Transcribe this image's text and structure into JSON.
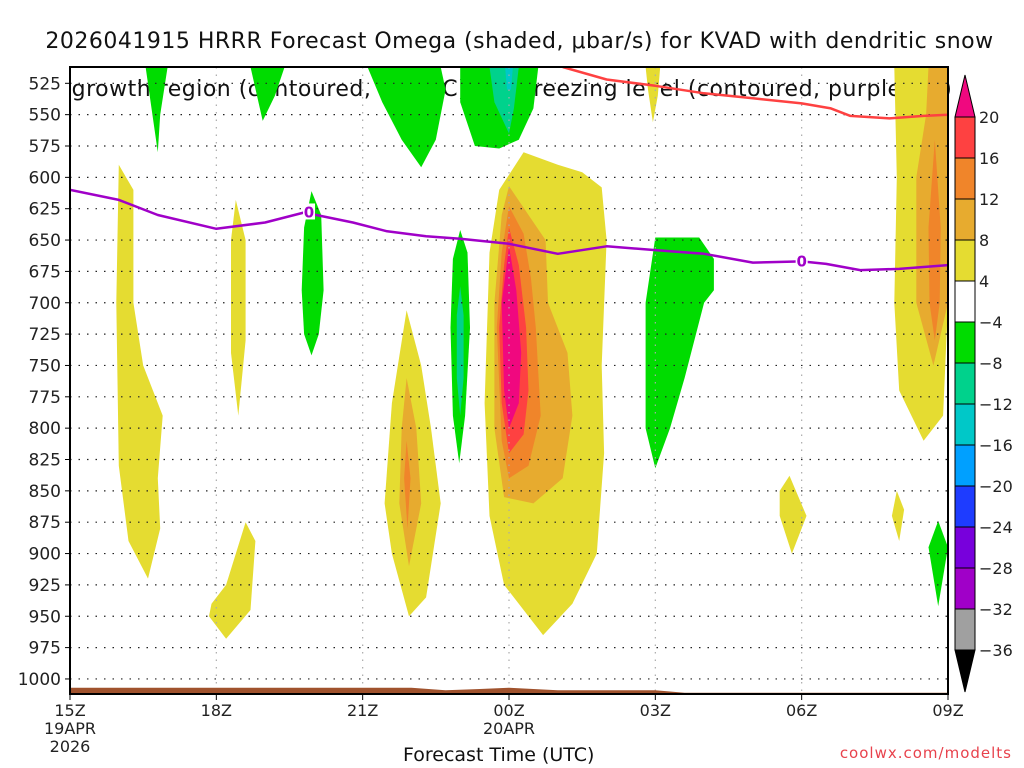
{
  "title": {
    "line1": "2026041915 HRRR Forecast Omega (shaded, μbar/s) for KVAD with dendritic snow",
    "line2": "growth region (contoured, red, ºC) and freezing level (contoured, purple, ºC)"
  },
  "credit": "coolwx.com/modelts",
  "chart_data": {
    "type": "heatmap",
    "title": "2026041915 HRRR Forecast Omega (shaded, μbar/s) for KVAD with dendritic snow growth region (contoured, red, ºC) and freezing level (contoured, purple, ºC)",
    "xlabel": "Forecast Time (UTC)",
    "ylabel": "",
    "x_ticks": [
      {
        "hour": 0,
        "label": "15Z",
        "sub": [
          "19APR",
          "2026"
        ]
      },
      {
        "hour": 3,
        "label": "18Z",
        "sub": []
      },
      {
        "hour": 6,
        "label": "21Z",
        "sub": []
      },
      {
        "hour": 9,
        "label": "00Z",
        "sub": [
          "20APR"
        ]
      },
      {
        "hour": 12,
        "label": "03Z",
        "sub": []
      },
      {
        "hour": 15,
        "label": "06Z",
        "sub": []
      },
      {
        "hour": 18,
        "label": "09Z",
        "sub": []
      }
    ],
    "xlim_hours": [
      0,
      18
    ],
    "y_ticks": [
      525,
      550,
      575,
      600,
      625,
      650,
      675,
      700,
      725,
      750,
      775,
      800,
      825,
      850,
      875,
      900,
      925,
      950,
      975,
      1000
    ],
    "ylim_hPa": [
      512,
      1012
    ],
    "grid": true,
    "colorbar": {
      "position": "right",
      "levels": [
        20,
        16,
        12,
        8,
        4,
        -4,
        -8,
        -12,
        -16,
        -20,
        -24,
        -28,
        -32,
        -36
      ],
      "colors": [
        "#f0087f",
        "#fe4141",
        "#f0852a",
        "#e7ab2f",
        "#e5dc31",
        "#ffffff",
        "#00dc00",
        "#00d28c",
        "#00c8c8",
        "#00a0ff",
        "#1e3cff",
        "#7800dc",
        "#a000c8",
        "#a0a0a0",
        "#000000"
      ]
    },
    "omega_regions": [
      {
        "level": -4,
        "color": "#00dc00",
        "pts": [
          [
            1.55,
            512
          ],
          [
            2.0,
            512
          ],
          [
            1.85,
            550
          ],
          [
            1.8,
            580
          ]
        ]
      },
      {
        "level": -4,
        "color": "#00dc00",
        "pts": [
          [
            3.7,
            512
          ],
          [
            4.4,
            512
          ],
          [
            4.2,
            535
          ],
          [
            3.95,
            555
          ]
        ]
      },
      {
        "level": -4,
        "color": "#00dc00",
        "pts": [
          [
            6.1,
            512
          ],
          [
            7.6,
            512
          ],
          [
            7.7,
            530
          ],
          [
            7.5,
            570
          ],
          [
            7.2,
            592
          ],
          [
            6.8,
            570
          ],
          [
            6.4,
            540
          ]
        ]
      },
      {
        "level": -4,
        "color": "#00dc00",
        "pts": [
          [
            8.0,
            512
          ],
          [
            9.6,
            512
          ],
          [
            9.5,
            545
          ],
          [
            9.2,
            570
          ],
          [
            8.8,
            577
          ],
          [
            8.3,
            575
          ],
          [
            8.0,
            540
          ]
        ]
      },
      {
        "level": -8,
        "color": "#00d28c",
        "pts": [
          [
            8.6,
            512
          ],
          [
            9.2,
            512
          ],
          [
            9.1,
            545
          ],
          [
            9.0,
            565
          ],
          [
            8.7,
            540
          ]
        ]
      },
      {
        "level": -12,
        "color": "#00c8c8",
        "pts": [
          [
            8.92,
            512
          ],
          [
            9.08,
            512
          ],
          [
            9.04,
            530
          ],
          [
            8.96,
            530
          ]
        ]
      },
      {
        "level": -4,
        "color": "#00dc00",
        "pts": [
          [
            4.95,
            611
          ],
          [
            5.15,
            630
          ],
          [
            5.2,
            690
          ],
          [
            5.1,
            725
          ],
          [
            4.95,
            742
          ],
          [
            4.8,
            725
          ],
          [
            4.75,
            690
          ],
          [
            4.8,
            640
          ]
        ]
      },
      {
        "level": -4,
        "color": "#00dc00",
        "pts": [
          [
            8.0,
            642
          ],
          [
            8.15,
            660
          ],
          [
            8.2,
            720
          ],
          [
            8.1,
            790
          ],
          [
            7.98,
            828
          ],
          [
            7.85,
            790
          ],
          [
            7.8,
            720
          ],
          [
            7.85,
            665
          ]
        ]
      },
      {
        "level": -8,
        "color": "#00d28c",
        "pts": [
          [
            8.0,
            687
          ],
          [
            8.07,
            710
          ],
          [
            8.07,
            760
          ],
          [
            8.0,
            790
          ],
          [
            7.93,
            760
          ],
          [
            7.93,
            710
          ]
        ]
      },
      {
        "level": -4,
        "color": "#00dc00",
        "pts": [
          [
            12.0,
            648
          ],
          [
            12.9,
            648
          ],
          [
            13.2,
            665
          ],
          [
            13.2,
            690
          ],
          [
            13.0,
            700
          ],
          [
            12.6,
            760
          ],
          [
            12.3,
            800
          ],
          [
            12.0,
            832
          ],
          [
            11.8,
            800
          ],
          [
            11.8,
            700
          ]
        ]
      },
      {
        "level": -4,
        "color": "#00dc00",
        "pts": [
          [
            17.8,
            874
          ],
          [
            18.0,
            895
          ],
          [
            17.8,
            942
          ],
          [
            17.6,
            895
          ]
        ]
      },
      {
        "level": 4,
        "color": "#e5dc31",
        "pts": [
          [
            1.0,
            590
          ],
          [
            1.3,
            610
          ],
          [
            1.3,
            700
          ],
          [
            1.5,
            750
          ],
          [
            1.9,
            790
          ],
          [
            1.8,
            840
          ],
          [
            1.85,
            880
          ],
          [
            1.6,
            920
          ],
          [
            1.2,
            890
          ],
          [
            1.0,
            830
          ],
          [
            0.95,
            700
          ]
        ]
      },
      {
        "level": 4,
        "color": "#e5dc31",
        "pts": [
          [
            3.4,
            618
          ],
          [
            3.6,
            650
          ],
          [
            3.6,
            730
          ],
          [
            3.45,
            790
          ],
          [
            3.3,
            740
          ],
          [
            3.3,
            650
          ]
        ]
      },
      {
        "level": 4,
        "color": "#e5dc31",
        "pts": [
          [
            3.6,
            875
          ],
          [
            3.8,
            890
          ],
          [
            3.7,
            945
          ],
          [
            3.2,
            968
          ],
          [
            2.85,
            950
          ],
          [
            2.9,
            940
          ],
          [
            3.2,
            925
          ]
        ]
      },
      {
        "level": 4,
        "color": "#e5dc31",
        "pts": [
          [
            6.9,
            706
          ],
          [
            7.2,
            750
          ],
          [
            7.4,
            800
          ],
          [
            7.6,
            860
          ],
          [
            7.3,
            935
          ],
          [
            6.95,
            950
          ],
          [
            6.6,
            900
          ],
          [
            6.45,
            860
          ],
          [
            6.6,
            780
          ]
        ]
      },
      {
        "level": 8,
        "color": "#e7ab2f",
        "pts": [
          [
            6.9,
            760
          ],
          [
            7.1,
            800
          ],
          [
            7.2,
            860
          ],
          [
            6.95,
            910
          ],
          [
            6.75,
            860
          ],
          [
            6.8,
            800
          ]
        ]
      },
      {
        "level": 12,
        "color": "#f0852a",
        "pts": [
          [
            6.9,
            810
          ],
          [
            6.98,
            840
          ],
          [
            6.92,
            880
          ],
          [
            6.85,
            840
          ]
        ]
      },
      {
        "level": 4,
        "color": "#e5dc31",
        "pts": [
          [
            9.3,
            580
          ],
          [
            10.0,
            590
          ],
          [
            10.5,
            596
          ],
          [
            10.9,
            608
          ],
          [
            11.0,
            650
          ],
          [
            10.9,
            750
          ],
          [
            10.95,
            820
          ],
          [
            10.8,
            900
          ],
          [
            10.3,
            940
          ],
          [
            9.7,
            965
          ],
          [
            8.9,
            925
          ],
          [
            8.6,
            870
          ],
          [
            8.5,
            780
          ],
          [
            8.6,
            660
          ],
          [
            8.8,
            610
          ]
        ]
      },
      {
        "level": 8,
        "color": "#e7ab2f",
        "pts": [
          [
            9.0,
            607
          ],
          [
            9.4,
            630
          ],
          [
            9.75,
            650
          ],
          [
            9.8,
            700
          ],
          [
            10.2,
            740
          ],
          [
            10.3,
            790
          ],
          [
            10.1,
            840
          ],
          [
            9.5,
            860
          ],
          [
            8.9,
            855
          ],
          [
            8.7,
            800
          ],
          [
            8.7,
            700
          ],
          [
            8.85,
            630
          ]
        ]
      },
      {
        "level": 12,
        "color": "#f0852a",
        "pts": [
          [
            9.0,
            623
          ],
          [
            9.3,
            645
          ],
          [
            9.45,
            680
          ],
          [
            9.55,
            720
          ],
          [
            9.65,
            790
          ],
          [
            9.4,
            830
          ],
          [
            9.0,
            840
          ],
          [
            8.85,
            810
          ],
          [
            8.75,
            720
          ],
          [
            8.85,
            660
          ]
        ]
      },
      {
        "level": 16,
        "color": "#fe4141",
        "pts": [
          [
            9.0,
            640
          ],
          [
            9.2,
            670
          ],
          [
            9.35,
            720
          ],
          [
            9.4,
            770
          ],
          [
            9.3,
            805
          ],
          [
            9.0,
            820
          ],
          [
            8.85,
            780
          ],
          [
            8.8,
            720
          ],
          [
            8.9,
            670
          ]
        ]
      },
      {
        "level": 20,
        "color": "#f0087f",
        "pts": [
          [
            9.0,
            655
          ],
          [
            9.15,
            690
          ],
          [
            9.25,
            740
          ],
          [
            9.2,
            780
          ],
          [
            9.0,
            800
          ],
          [
            8.9,
            770
          ],
          [
            8.85,
            700
          ]
        ]
      },
      {
        "level": 4,
        "color": "#e5dc31",
        "pts": [
          [
            11.8,
            512
          ],
          [
            12.1,
            512
          ],
          [
            12.05,
            535
          ],
          [
            11.95,
            556
          ],
          [
            11.85,
            530
          ]
        ]
      },
      {
        "level": 4,
        "color": "#e5dc31",
        "pts": [
          [
            16.9,
            512
          ],
          [
            18.0,
            512
          ],
          [
            18.0,
            700
          ],
          [
            17.9,
            790
          ],
          [
            17.5,
            810
          ],
          [
            17.0,
            770
          ],
          [
            16.9,
            700
          ],
          [
            16.95,
            600
          ]
        ]
      },
      {
        "level": 8,
        "color": "#e7ab2f",
        "pts": [
          [
            17.6,
            512
          ],
          [
            18.0,
            512
          ],
          [
            18.1,
            650
          ],
          [
            18.0,
            700
          ],
          [
            17.7,
            750
          ],
          [
            17.35,
            700
          ],
          [
            17.35,
            600
          ],
          [
            17.55,
            550
          ]
        ]
      },
      {
        "level": 12,
        "color": "#f0852a",
        "pts": [
          [
            17.73,
            570
          ],
          [
            17.85,
            640
          ],
          [
            17.83,
            700
          ],
          [
            17.73,
            730
          ],
          [
            17.62,
            700
          ],
          [
            17.6,
            640
          ]
        ]
      },
      {
        "level": 4,
        "color": "#e5dc31",
        "pts": [
          [
            14.75,
            838
          ],
          [
            15.1,
            870
          ],
          [
            14.8,
            900
          ],
          [
            14.55,
            870
          ],
          [
            14.55,
            850
          ]
        ]
      },
      {
        "level": 4,
        "color": "#e5dc31",
        "pts": [
          [
            16.95,
            850
          ],
          [
            17.1,
            865
          ],
          [
            17.0,
            890
          ],
          [
            16.85,
            870
          ]
        ]
      }
    ],
    "dendritic_contour": {
      "color": "#fe4141",
      "points": [
        [
          10.1,
          512
        ],
        [
          11.0,
          522
        ],
        [
          12.0,
          527
        ],
        [
          13.0,
          533
        ],
        [
          14.0,
          537
        ],
        [
          15.0,
          541
        ],
        [
          15.6,
          545
        ],
        [
          16.0,
          551
        ],
        [
          16.8,
          553
        ],
        [
          17.5,
          551
        ],
        [
          18.0,
          550
        ]
      ]
    },
    "freezing_level": {
      "color": "#a000c8",
      "label": "0",
      "points": [
        [
          0,
          610
        ],
        [
          1.0,
          618
        ],
        [
          1.8,
          630
        ],
        [
          3.0,
          641
        ],
        [
          4.0,
          636
        ],
        [
          4.8,
          628
        ],
        [
          5.8,
          636
        ],
        [
          6.5,
          643
        ],
        [
          7.3,
          647
        ],
        [
          8.0,
          649
        ],
        [
          9.0,
          653
        ],
        [
          10.0,
          661
        ],
        [
          11.0,
          655
        ],
        [
          12.0,
          658
        ],
        [
          13.0,
          661
        ],
        [
          14.0,
          668
        ],
        [
          15.0,
          667
        ],
        [
          15.5,
          669
        ],
        [
          16.2,
          674
        ],
        [
          17.0,
          673
        ],
        [
          18.0,
          670
        ]
      ],
      "label_points": [
        [
          4.9,
          628
        ],
        [
          15.0,
          667
        ]
      ]
    },
    "terrain": {
      "color": "#a0522d",
      "points": [
        [
          0,
          1007
        ],
        [
          7.0,
          1007
        ],
        [
          7.7,
          1009
        ],
        [
          8.4,
          1008
        ],
        [
          9.0,
          1007
        ],
        [
          9.5,
          1008
        ],
        [
          10.0,
          1009
        ],
        [
          12.0,
          1009
        ],
        [
          12.6,
          1011
        ],
        [
          18.0,
          1011
        ]
      ]
    }
  }
}
